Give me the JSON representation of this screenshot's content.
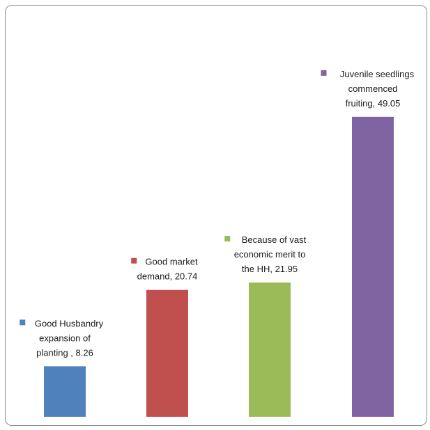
{
  "chart_data": {
    "type": "bar",
    "title": "",
    "xlabel": "",
    "ylabel": "",
    "ylim": [
      0,
      50
    ],
    "grid": false,
    "legend": "none",
    "categories": [
      "Good Husbandry expansion of planting",
      "Good market demand",
      "Because of vast economic merit to the HH",
      "Juvenile seedlings commenced fruiting"
    ],
    "values": [
      8.26,
      20.74,
      21.95,
      49.05
    ],
    "colors": [
      "#4f81bd",
      "#c0504d",
      "#9bbb59",
      "#8064a2"
    ],
    "data_labels": [
      [
        "Good  Husbandry",
        "expansion of",
        "planting  , 8.26"
      ],
      [
        "Good market",
        "demand, 20.74"
      ],
      [
        "Because of vast",
        "economic merit to",
        "the HH, 21.95"
      ],
      [
        "Juvenile seedlings",
        "commenced",
        "fruiting, 49.05"
      ]
    ]
  }
}
